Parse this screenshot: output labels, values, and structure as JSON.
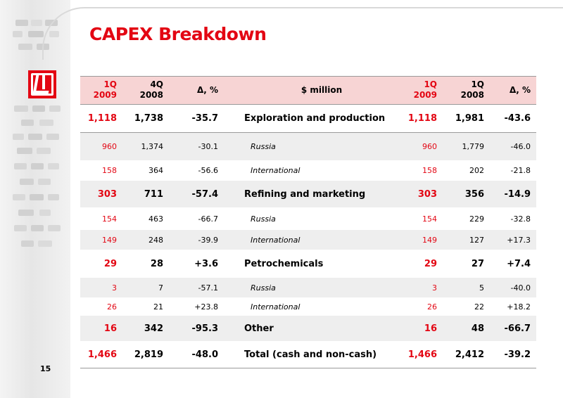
{
  "slide": {
    "title": "CAPEX Breakdown",
    "page_number": "15"
  },
  "colors": {
    "accent": "#e30613",
    "header_bg": "#f7d4d4",
    "shade_bg": "#eeeeee"
  },
  "table": {
    "headers": {
      "c1": [
        "1Q",
        "2009"
      ],
      "c2": [
        "4Q",
        "2008"
      ],
      "c3": "Δ, %",
      "label": "$ million",
      "c5": [
        "1Q",
        "2009"
      ],
      "c6": [
        "1Q",
        "2008"
      ],
      "c7": "Δ, %"
    },
    "rows": [
      {
        "kind": "bold",
        "shade": false,
        "label": "Exploration and production",
        "q1_09a": "1,118",
        "q4_08": "1,738",
        "d1": "-35.7",
        "q1_09b": "1,118",
        "q1_08": "1,981",
        "d2": "-43.6"
      },
      {
        "kind": "sub",
        "shade": true,
        "label": "Russia",
        "q1_09a": "960",
        "q4_08": "1,374",
        "d1": "-30.1",
        "q1_09b": "960",
        "q1_08": "1,779",
        "d2": "-46.0"
      },
      {
        "kind": "sub",
        "shade": false,
        "label": "International",
        "q1_09a": "158",
        "q4_08": "364",
        "d1": "-56.6",
        "q1_09b": "158",
        "q1_08": "202",
        "d2": "-21.8"
      },
      {
        "kind": "bold",
        "shade": true,
        "label": "Refining and marketing",
        "q1_09a": "303",
        "q4_08": "711",
        "d1": "-57.4",
        "q1_09b": "303",
        "q1_08": "356",
        "d2": "-14.9"
      },
      {
        "kind": "sub",
        "shade": false,
        "label": "Russia",
        "q1_09a": "154",
        "q4_08": "463",
        "d1": "-66.7",
        "q1_09b": "154",
        "q1_08": "229",
        "d2": "-32.8"
      },
      {
        "kind": "sub",
        "shade": true,
        "label": "International",
        "q1_09a": "149",
        "q4_08": "248",
        "d1": "-39.9",
        "q1_09b": "149",
        "q1_08": "127",
        "d2": "+17.3"
      },
      {
        "kind": "bold",
        "shade": false,
        "label": "Petrochemicals",
        "q1_09a": "29",
        "q4_08": "28",
        "d1": "+3.6",
        "q1_09b": "29",
        "q1_08": "27",
        "d2": "+7.4"
      },
      {
        "kind": "sub",
        "shade": true,
        "label": "Russia",
        "q1_09a": "3",
        "q4_08": "7",
        "d1": "-57.1",
        "q1_09b": "3",
        "q1_08": "5",
        "d2": "-40.0"
      },
      {
        "kind": "sub",
        "shade": false,
        "label": "International",
        "q1_09a": "26",
        "q4_08": "21",
        "d1": "+23.8",
        "q1_09b": "26",
        "q1_08": "22",
        "d2": "+18.2"
      },
      {
        "kind": "bold",
        "shade": true,
        "label": "Other",
        "q1_09a": "16",
        "q4_08": "342",
        "d1": "-95.3",
        "q1_09b": "16",
        "q1_08": "48",
        "d2": "-66.7"
      },
      {
        "kind": "bold",
        "shade": false,
        "label": "Total (cash and non-cash)",
        "q1_09a": "1,466",
        "q4_08": "2,819",
        "d1": "-48.0",
        "q1_09b": "1,466",
        "q1_08": "2,412",
        "d2": "-39.2"
      }
    ]
  }
}
